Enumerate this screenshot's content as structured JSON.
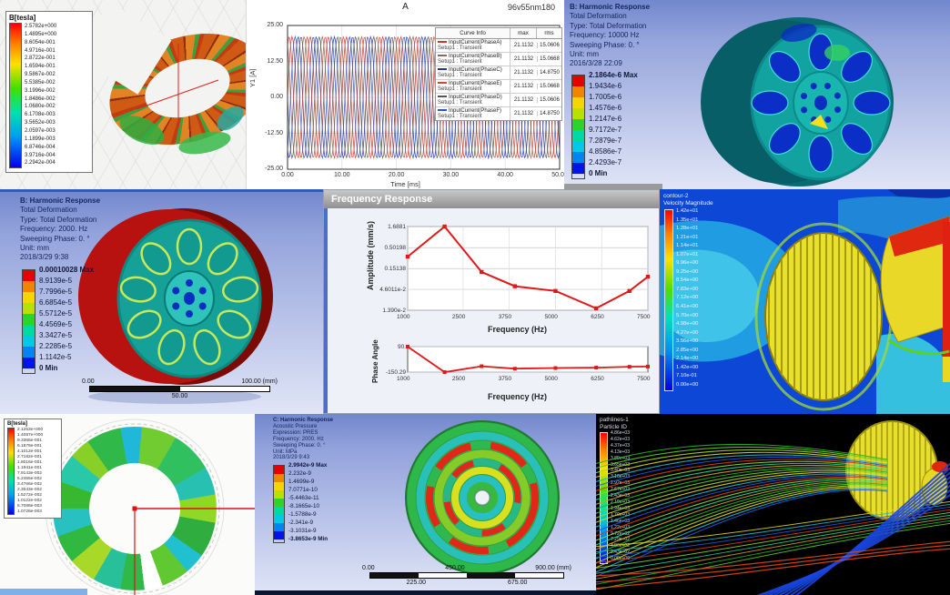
{
  "colors": {
    "ansys_bands": [
      "#e60000",
      "#f28500",
      "#f2d800",
      "#b8e000",
      "#2ad42a",
      "#00d9a3",
      "#00c8e6",
      "#0084f2",
      "#0014e6"
    ],
    "curve_red": "#e01818",
    "cfd_background": "#0d47d6",
    "pathlines_background": "#000000"
  },
  "panels": {
    "torus_field": {
      "legend_title": "B[tesla]",
      "values": [
        "2.5782e+000",
        "1.4895e+000",
        "8.6054e-001",
        "4.9716e-001",
        "2.8722e-001",
        "1.6594e-001",
        "9.5867e-002",
        "5.5385e-002",
        "3.1996e-002",
        "1.8486e-002",
        "1.0680e-002",
        "6.1708e-003",
        "3.5652e-003",
        "2.0597e-003",
        "1.1899e-003",
        "6.8746e-004",
        "3.9716e-004",
        "2.2942e-004"
      ]
    },
    "current_plot": {
      "title": "A",
      "model_label": "96v55nm180",
      "ylabel": "Y1 [A]",
      "xlabel": "Time [ms]",
      "legend_headers": [
        "Curve Info",
        "max",
        "rms"
      ]
    },
    "harmonic_b1": {
      "lines": [
        "B: Harmonic Response",
        "Total Deformation",
        "Type: Total Deformation",
        "Frequency: 10000 Hz",
        "Sweeping Phase: 0. °",
        "Unit: mm",
        "2016/3/28 22:09"
      ],
      "legend": [
        "2.1864e-6 Max",
        "1.9434e-6",
        "1.7005e-6",
        "1.4576e-6",
        "1.2147e-6",
        "9.7172e-7",
        "7.2879e-7",
        "4.8586e-7",
        "2.4293e-7",
        "0 Min"
      ]
    },
    "harmonic_b2": {
      "lines": [
        "B: Harmonic Response",
        "Total Deformation",
        "Type: Total Deformation",
        "Frequency: 2000. Hz",
        "Sweeping Phase: 0. °",
        "Unit: mm",
        "2018/3/29 9:38"
      ],
      "legend": [
        "0.00010028 Max",
        "8.9139e-5",
        "7.7996e-5",
        "6.6854e-5",
        "5.5712e-5",
        "4.4569e-5",
        "3.3427e-5",
        "2.2285e-5",
        "1.1142e-5",
        "0 Min"
      ],
      "scale_top": [
        "0.00",
        "100.00 (mm)"
      ],
      "scale_bot": [
        "50.00"
      ]
    },
    "freq_response": {
      "window_title": "Frequency Response"
    },
    "cfd_contour": {
      "header": [
        "contour-2",
        "Velocity Magnitude"
      ],
      "values": [
        "1.42e+01",
        "1.35e+01",
        "1.28e+01",
        "1.21e+01",
        "1.14e+01",
        "1.07e+01",
        "9.96e+00",
        "9.25e+00",
        "8.54e+00",
        "7.83e+00",
        "7.12e+00",
        "6.41e+00",
        "5.70e+00",
        "4.98e+00",
        "4.27e+00",
        "3.56e+00",
        "2.85e+00",
        "2.14e+00",
        "1.42e+00",
        "7.10e-01",
        "0.00e+00"
      ]
    },
    "rotor_field": {
      "legend_title": "B[tesla]",
      "values": [
        "2.1253e+000",
        "1.4087e+000",
        "9.3365e-001",
        "6.1879e-001",
        "4.1012e-001",
        "2.7182e-001",
        "1.8016e-001",
        "1.1941e-001",
        "7.9143e-002",
        "5.2455e-002",
        "3.4766e-002",
        "2.3043e-002",
        "1.5272e-002",
        "1.0122e-002",
        "6.7088e-003",
        "1.0728e-003"
      ]
    },
    "acoustic": {
      "lines": [
        "C: Harmonic Response",
        "Acoustic Pressure",
        "Expression: PRES",
        "Frequency: 2000. Hz",
        "Sweeping Phase: 0. °",
        "Unit: MPa",
        "2018/3/29 9:43"
      ],
      "legend": [
        "2.9942e-9 Max",
        "2.232e-9",
        "1.4699e-9",
        "7.0771e-10",
        "-5.4463e-11",
        "-8.1665e-10",
        "-1.5788e-9",
        "-2.341e-9",
        "-3.1031e-9",
        "-3.8653e-9 Min"
      ],
      "scale_top": [
        "0.00",
        "450.00",
        "900.00 (mm)"
      ],
      "scale_bot": [
        "225.00",
        "675.00"
      ]
    },
    "pathlines": {
      "header": [
        "pathlines-1",
        "Particle ID"
      ],
      "values": [
        "4.86e+03",
        "4.62e+03",
        "4.37e+03",
        "4.13e+03",
        "3.89e+03",
        "3.65e+03",
        "3.40e+03",
        "3.16e+03",
        "2.92e+03",
        "2.67e+03",
        "2.43e+03",
        "2.19e+03",
        "1.94e+03",
        "1.70e+03",
        "1.46e+03",
        "1.22e+03",
        "9.72e+02",
        "7.29e+02",
        "4.86e+02",
        "2.43e+02",
        "0.00e+00"
      ]
    }
  },
  "chart_data": [
    {
      "type": "line",
      "title": "A",
      "subtitle": "96v55nm180",
      "xlabel": "Time [ms]",
      "ylabel": "Y1 [A]",
      "x_range": [
        0,
        50
      ],
      "y_range": [
        -25,
        25
      ],
      "x_ticks": [
        "0.00",
        "10.00",
        "20.00",
        "30.00",
        "40.00",
        "50.00"
      ],
      "y_ticks": [
        "25.00",
        "12.50",
        "0.00",
        "-12.50",
        "-25.00"
      ],
      "amplitude": 21.1132,
      "cycles": 15,
      "grid": true,
      "legend_position": "right",
      "series": [
        {
          "name": "InputCurrent(PhaseA)",
          "setup": "Setup1 : Transient",
          "max": "21.1132",
          "rms": "15.0606",
          "color": "#c43a2e",
          "phase_deg": 0
        },
        {
          "name": "InputCurrent(PhaseB)",
          "setup": "Setup1 : Transient",
          "max": "21.1132",
          "rms": "15.0668",
          "color": "#8a6a5a",
          "phase_deg": 120
        },
        {
          "name": "InputCurrent(PhaseC)",
          "setup": "Setup1 : Transient",
          "max": "21.1132",
          "rms": "14.8750",
          "color": "#25369e",
          "phase_deg": 240
        },
        {
          "name": "InputCurrent(PhaseE)",
          "setup": "Setup1 : Transient",
          "max": "21.1132",
          "rms": "15.0668",
          "color": "#d04838",
          "phase_deg": 60
        },
        {
          "name": "InputCurrent(PhaseD)",
          "setup": "Setup1 : Transient",
          "max": "21.1132",
          "rms": "15.0606",
          "color": "#555555",
          "phase_deg": 180
        },
        {
          "name": "InputCurrent(PhaseF)",
          "setup": "Setup1 : Transient",
          "max": "21.1132",
          "rms": "14.8750",
          "color": "#3352c0",
          "phase_deg": 300
        }
      ]
    },
    {
      "type": "line",
      "title": "Frequency Response",
      "xlabel": "Frequency (Hz)",
      "ylabel": "Amplitude (mm/s)",
      "y_scale": "log",
      "x_ticks": [
        "1000",
        "2500",
        "3750",
        "5000",
        "6250",
        "7500"
      ],
      "x_tick_values": [
        1000,
        2500,
        3750,
        5000,
        6250,
        7500
      ],
      "y_ticks": [
        "1.6881",
        "0.50198",
        "0.15138",
        "4.6011e-2",
        "1.390e-2"
      ],
      "y_tick_values": [
        1.6881,
        0.50198,
        0.15138,
        0.046011,
        0.0139
      ],
      "points": [
        [
          1000,
          0.3
        ],
        [
          2000,
          1.6881
        ],
        [
          3000,
          0.125
        ],
        [
          3900,
          0.055
        ],
        [
          5000,
          0.042
        ],
        [
          6100,
          0.0155
        ],
        [
          7000,
          0.042
        ],
        [
          7500,
          0.095
        ]
      ],
      "color": "#e01818",
      "grid": true
    },
    {
      "type": "line",
      "xlabel": "Frequency (Hz)",
      "ylabel": "Phase Angle",
      "x_ticks": [
        "1000",
        "2500",
        "3750",
        "5000",
        "6250",
        "7500"
      ],
      "x_tick_values": [
        1000,
        2500,
        3750,
        5000,
        6250,
        7500
      ],
      "y_ticks": [
        "90.",
        "-150.29"
      ],
      "y_tick_values": [
        90,
        -150.29
      ],
      "points": [
        [
          1000,
          90
        ],
        [
          2000,
          -150.29
        ],
        [
          3000,
          -95
        ],
        [
          3900,
          -118
        ],
        [
          5000,
          -112
        ],
        [
          6100,
          -108
        ],
        [
          7000,
          -100
        ],
        [
          7500,
          -98
        ]
      ],
      "color": "#e01818",
      "grid": false
    }
  ]
}
